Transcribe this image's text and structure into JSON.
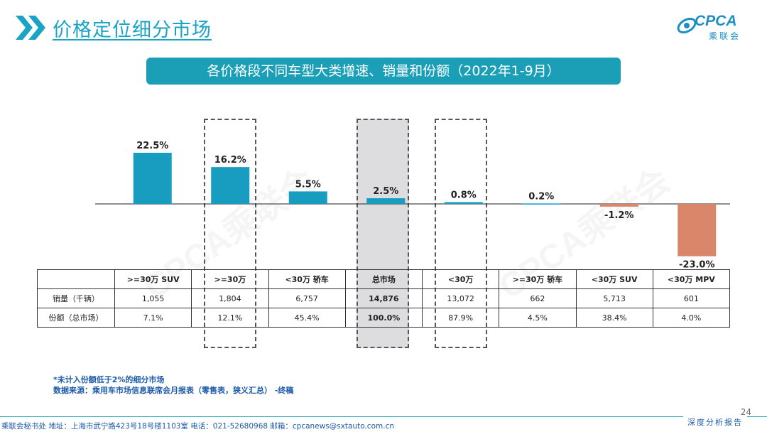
{
  "header": {
    "title": "价格定位细分市场"
  },
  "logo": {
    "text": "CPCA",
    "sub": "乘联会",
    "icon": "cpca-logo"
  },
  "banner": {
    "text": "各价格段不同车型大类增速、销量和份额（2022年1-9月）"
  },
  "watermark": {
    "text": "CPCA乘联会"
  },
  "chart_data": {
    "type": "bar",
    "title": "各价格段不同车型大类增速、销量和份额（2022年1-9月）",
    "categories": [
      ">=30万 SUV",
      ">=30万",
      "<30万 轿车",
      "总市场",
      "<30万",
      ">=30万 轿车",
      "<30万 SUV",
      "<30万 MPV"
    ],
    "values": [
      22.5,
      16.2,
      5.5,
      2.5,
      0.8,
      0.2,
      -1.2,
      -23.0
    ],
    "labels": [
      "22.5%",
      "16.2%",
      "5.5%",
      "2.5%",
      "0.8%",
      "0.2%",
      "-1.2%",
      "-23.0%"
    ],
    "unit": "%",
    "ylim": [
      -23.0,
      22.5
    ],
    "colors": {
      "positive": "#189cc0",
      "negative": "#d9866a"
    },
    "highlighted": [
      ">=30万",
      "总市场",
      "<30万"
    ]
  },
  "table": {
    "headers": [
      ">=30万 SUV",
      ">=30万",
      "<30万 轿车",
      "总市场",
      "<30万",
      ">=30万 轿车",
      "<30万 SUV",
      "<30万 MPV"
    ],
    "rows": [
      {
        "label": "销量（千辆）",
        "values": [
          "1,055",
          "1,804",
          "6,757",
          "14,876",
          "13,072",
          "662",
          "5,713",
          "601"
        ]
      },
      {
        "label": "份额（总市场）",
        "values": [
          "7.1%",
          "12.1%",
          "45.4%",
          "100.0%",
          "87.9%",
          "4.5%",
          "38.4%",
          "4.0%"
        ]
      }
    ]
  },
  "notes": [
    "*未计入份额低于2%的细分市场",
    "数据来源：乘用车市场信息联席会月报表（零售表，狭义汇总） -终稿"
  ],
  "footer": {
    "text": "乘联会秘书处   地址：上海市武宁路423号18号楼1103室  电话：021-52680968   邮箱：cpcanews@sxtauto.com.cn",
    "page_number": "24",
    "report_label": "深度分析报告"
  }
}
